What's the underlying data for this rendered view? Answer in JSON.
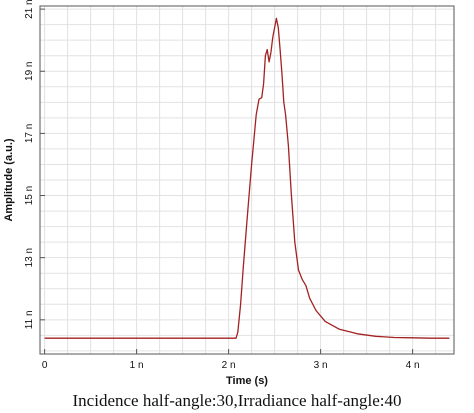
{
  "chart_data": {
    "type": "line",
    "xlabel": "Time (s)",
    "ylabel": "Amplitude (a.u.)",
    "xlim": [
      -0.05,
      4.45
    ],
    "ylim": [
      9.9,
      21.1
    ],
    "x_ticks": [
      {
        "value": 0,
        "label": "0"
      },
      {
        "value": 1,
        "label": "1 n"
      },
      {
        "value": 2,
        "label": "2 n"
      },
      {
        "value": 3,
        "label": "3 n"
      },
      {
        "value": 4,
        "label": "4 n"
      }
    ],
    "y_ticks": [
      {
        "value": 11,
        "label": "11 n"
      },
      {
        "value": 13,
        "label": "13 n"
      },
      {
        "value": 15,
        "label": "15 n"
      },
      {
        "value": 17,
        "label": "17 n"
      },
      {
        "value": 19,
        "label": "19 n"
      },
      {
        "value": 21,
        "label": "21 n"
      }
    ],
    "grid": true,
    "series": [
      {
        "color": "#a32121",
        "points": [
          [
            0.0,
            10.41
          ],
          [
            0.5,
            10.41
          ],
          [
            1.0,
            10.41
          ],
          [
            1.5,
            10.41
          ],
          [
            2.0,
            10.41
          ],
          [
            2.08,
            10.41
          ],
          [
            2.1,
            10.6
          ],
          [
            2.13,
            11.5
          ],
          [
            2.16,
            12.7
          ],
          [
            2.2,
            14.2
          ],
          [
            2.25,
            16.0
          ],
          [
            2.3,
            17.6
          ],
          [
            2.33,
            18.1
          ],
          [
            2.36,
            18.15
          ],
          [
            2.38,
            18.6
          ],
          [
            2.4,
            19.5
          ],
          [
            2.42,
            19.7
          ],
          [
            2.44,
            19.3
          ],
          [
            2.46,
            19.6
          ],
          [
            2.48,
            20.1
          ],
          [
            2.5,
            20.4
          ],
          [
            2.52,
            20.7
          ],
          [
            2.54,
            20.4
          ],
          [
            2.56,
            19.7
          ],
          [
            2.58,
            18.9
          ],
          [
            2.6,
            18.0
          ],
          [
            2.62,
            17.6
          ],
          [
            2.65,
            16.6
          ],
          [
            2.68,
            15.1
          ],
          [
            2.72,
            13.5
          ],
          [
            2.76,
            12.6
          ],
          [
            2.8,
            12.3
          ],
          [
            2.84,
            12.1
          ],
          [
            2.88,
            11.7
          ],
          [
            2.95,
            11.3
          ],
          [
            3.05,
            10.95
          ],
          [
            3.2,
            10.7
          ],
          [
            3.4,
            10.55
          ],
          [
            3.6,
            10.47
          ],
          [
            3.8,
            10.43
          ],
          [
            4.0,
            10.42
          ],
          [
            4.2,
            10.41
          ],
          [
            4.4,
            10.41
          ]
        ]
      }
    ]
  },
  "caption": "Incidence half-angle:30,Irradiance half-angle:40"
}
